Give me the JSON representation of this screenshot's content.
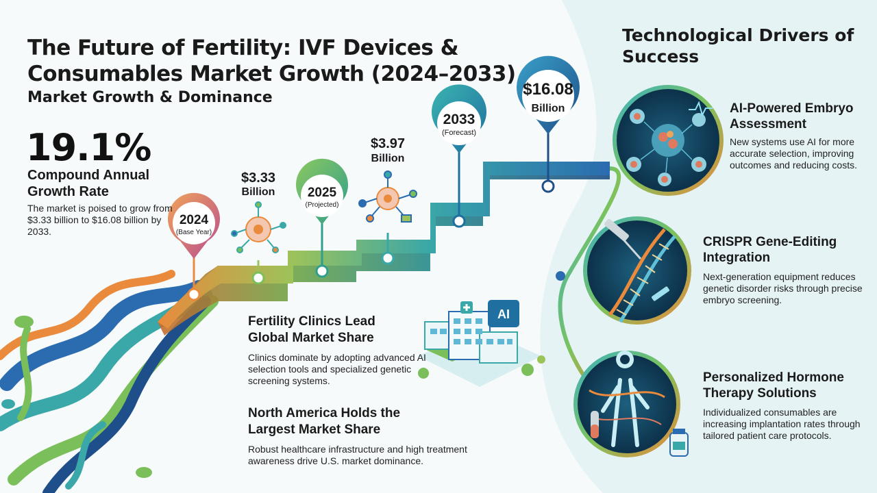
{
  "title": "The Future of Fertility: IVF Devices & Consumables Market Growth (2024–2033)",
  "market": {
    "heading": "Market Growth & Dominance",
    "cagr_value": "19.1%",
    "cagr_label": "Compound Annual Growth Rate",
    "description": "The market is poised to grow from $3.33 billion to $16.08 billion by 2033."
  },
  "timeline": {
    "pins": [
      {
        "year": "2024",
        "sub": "(Base Year)"
      },
      {
        "year": "2025",
        "sub": "(Projected)"
      },
      {
        "year": "2033",
        "sub": "(Forecast)"
      },
      {
        "value": "$16.08",
        "unit": "Billion"
      }
    ],
    "values": [
      {
        "value": "$3.33",
        "unit": "Billion"
      },
      {
        "value": "$3.97",
        "unit": "Billion"
      }
    ]
  },
  "clinics": {
    "heading": "Fertility Clinics Lead Global Market Share",
    "description": "Clinics dominate by adopting advanced AI selection tools and specialized genetic screening systems.",
    "ai_sign": "AI"
  },
  "north_america": {
    "heading": "North America Holds the Largest Market Share",
    "description": "Robust healthcare infrastructure and high treatment awareness drive U.S. market dominance."
  },
  "drivers": {
    "heading": "Technological Drivers of Success",
    "items": [
      {
        "title": "AI-Powered Embryo Assessment",
        "description": "New systems use AI for more accurate selection, improving outcomes and reducing costs."
      },
      {
        "title": "CRISPR Gene-Editing Integration",
        "description": "Next-generation equipment reduces genetic disorder risks through precise embryo screening."
      },
      {
        "title": "Personalized Hormone Therapy Solutions",
        "description": "Individualized consumables are increasing implantation rates through tailored patient care protocols."
      }
    ]
  },
  "colors": {
    "accent_teal": "#1f8fa6",
    "accent_green": "#7bbf5a",
    "accent_orange": "#e98a3c",
    "accent_blue": "#2b6cb0"
  }
}
